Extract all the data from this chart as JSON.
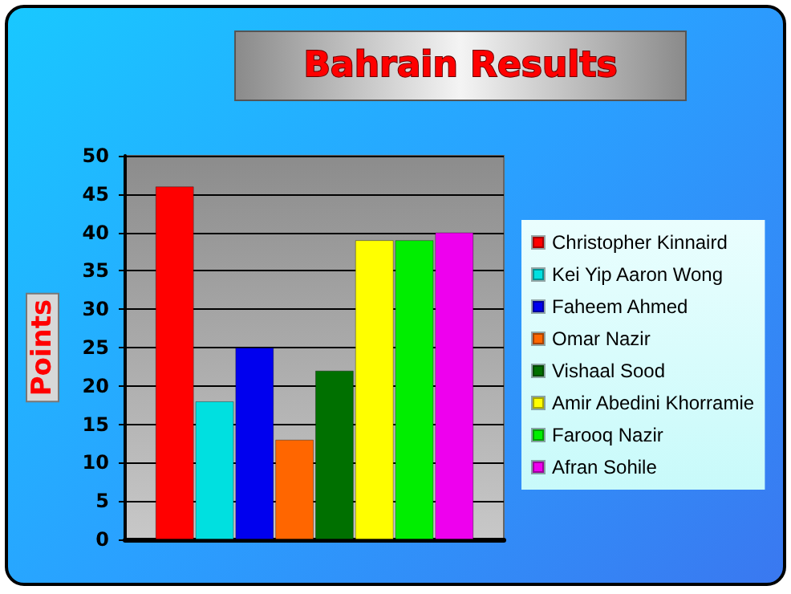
{
  "chart_data": {
    "type": "bar",
    "title": "Bahrain Results",
    "ylabel": "Points",
    "categories": [
      null
    ],
    "series": [
      {
        "name": "Christopher Kinnaird",
        "color": "#ff0000",
        "values": [
          46
        ]
      },
      {
        "name": "Kei Yip Aaron Wong",
        "color": "#00e0e0",
        "values": [
          18
        ]
      },
      {
        "name": "Faheem Ahmed",
        "color": "#0000ee",
        "values": [
          25
        ]
      },
      {
        "name": "Omar Nazir",
        "color": "#ff6600",
        "values": [
          13
        ]
      },
      {
        "name": "Vishaal Sood",
        "color": "#007000",
        "values": [
          22
        ]
      },
      {
        "name": "Amir Abedini Khorramie",
        "color": "#ffff00",
        "values": [
          39
        ]
      },
      {
        "name": "Farooq Nazir",
        "color": "#00ee00",
        "values": [
          39
        ]
      },
      {
        "name": "Afran Sohile",
        "color": "#ee00ee",
        "values": [
          40
        ]
      }
    ],
    "ylim": [
      0,
      50
    ],
    "yticks": [
      0,
      5,
      10,
      15,
      20,
      25,
      30,
      35,
      40,
      45,
      50
    ],
    "grid": "y",
    "legend": "right"
  }
}
